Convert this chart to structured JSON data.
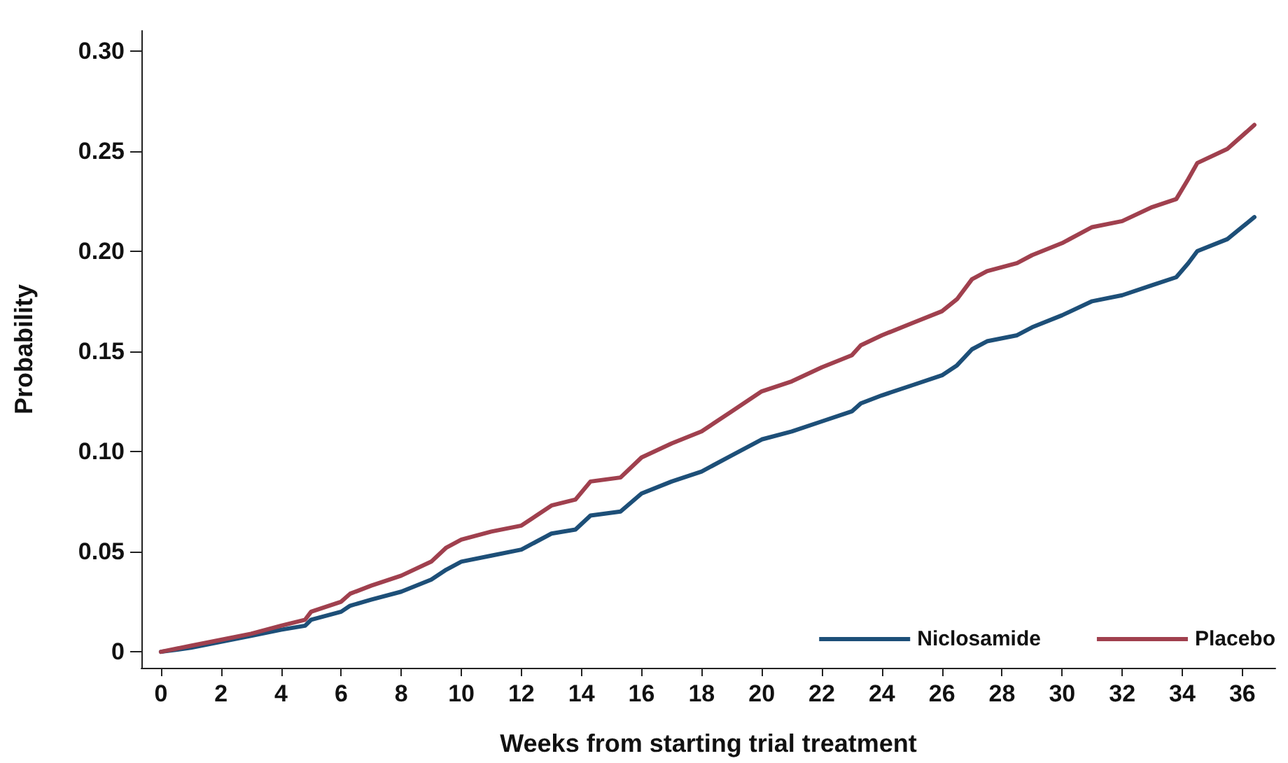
{
  "chart_data": {
    "type": "line",
    "xlabel": "Weeks from starting trial treatment",
    "ylabel": "Probability",
    "x": [
      0,
      1,
      2,
      3,
      4,
      4.8,
      5,
      6,
      6.3,
      7,
      8,
      9,
      9.5,
      10,
      11,
      12,
      13,
      13.8,
      14.3,
      15.3,
      16,
      17,
      18,
      19,
      20,
      21,
      22,
      23,
      23.3,
      24,
      25,
      26,
      26.5,
      27,
      27.5,
      28.5,
      29,
      30,
      31,
      32,
      33,
      33.8,
      34.2,
      34.5,
      35.5,
      36.4
    ],
    "series": [
      {
        "name": "Niclosamide",
        "color": "#1d4f78",
        "values": [
          0,
          0.002,
          0.005,
          0.008,
          0.011,
          0.013,
          0.016,
          0.02,
          0.023,
          0.026,
          0.03,
          0.036,
          0.041,
          0.045,
          0.048,
          0.051,
          0.059,
          0.061,
          0.068,
          0.07,
          0.079,
          0.085,
          0.09,
          0.098,
          0.106,
          0.11,
          0.115,
          0.12,
          0.124,
          0.128,
          0.133,
          0.138,
          0.143,
          0.151,
          0.155,
          0.158,
          0.162,
          0.168,
          0.175,
          0.178,
          0.183,
          0.187,
          0.194,
          0.2,
          0.206,
          0.217
        ]
      },
      {
        "name": "Placebo",
        "color": "#a0404e",
        "values": [
          0,
          0.003,
          0.006,
          0.009,
          0.013,
          0.016,
          0.02,
          0.025,
          0.029,
          0.033,
          0.038,
          0.045,
          0.052,
          0.056,
          0.06,
          0.063,
          0.073,
          0.076,
          0.085,
          0.087,
          0.097,
          0.104,
          0.11,
          0.12,
          0.13,
          0.135,
          0.142,
          0.148,
          0.153,
          0.158,
          0.164,
          0.17,
          0.176,
          0.186,
          0.19,
          0.194,
          0.198,
          0.204,
          0.212,
          0.215,
          0.222,
          0.226,
          0.236,
          0.244,
          0.251,
          0.263
        ]
      }
    ],
    "xlim": [
      -0.65,
      37.1
    ],
    "xticks": [
      0,
      2,
      4,
      6,
      8,
      10,
      12,
      14,
      16,
      18,
      20,
      22,
      24,
      26,
      28,
      30,
      32,
      34,
      36
    ],
    "ylim": [
      -0.008,
      0.31
    ],
    "yticks": [
      0,
      {
        "value": 0.05,
        "label": "0.05"
      },
      {
        "value": 0.1,
        "label": "0.10"
      },
      {
        "value": 0.15,
        "label": "0.15"
      },
      {
        "value": 0.2,
        "label": "0.20"
      },
      {
        "value": 0.25,
        "label": "0.25"
      },
      {
        "value": 0.3,
        "label": "0.30"
      }
    ],
    "grid": false,
    "legend": "bottom right",
    "marker": "none",
    "line_style": "solid"
  }
}
